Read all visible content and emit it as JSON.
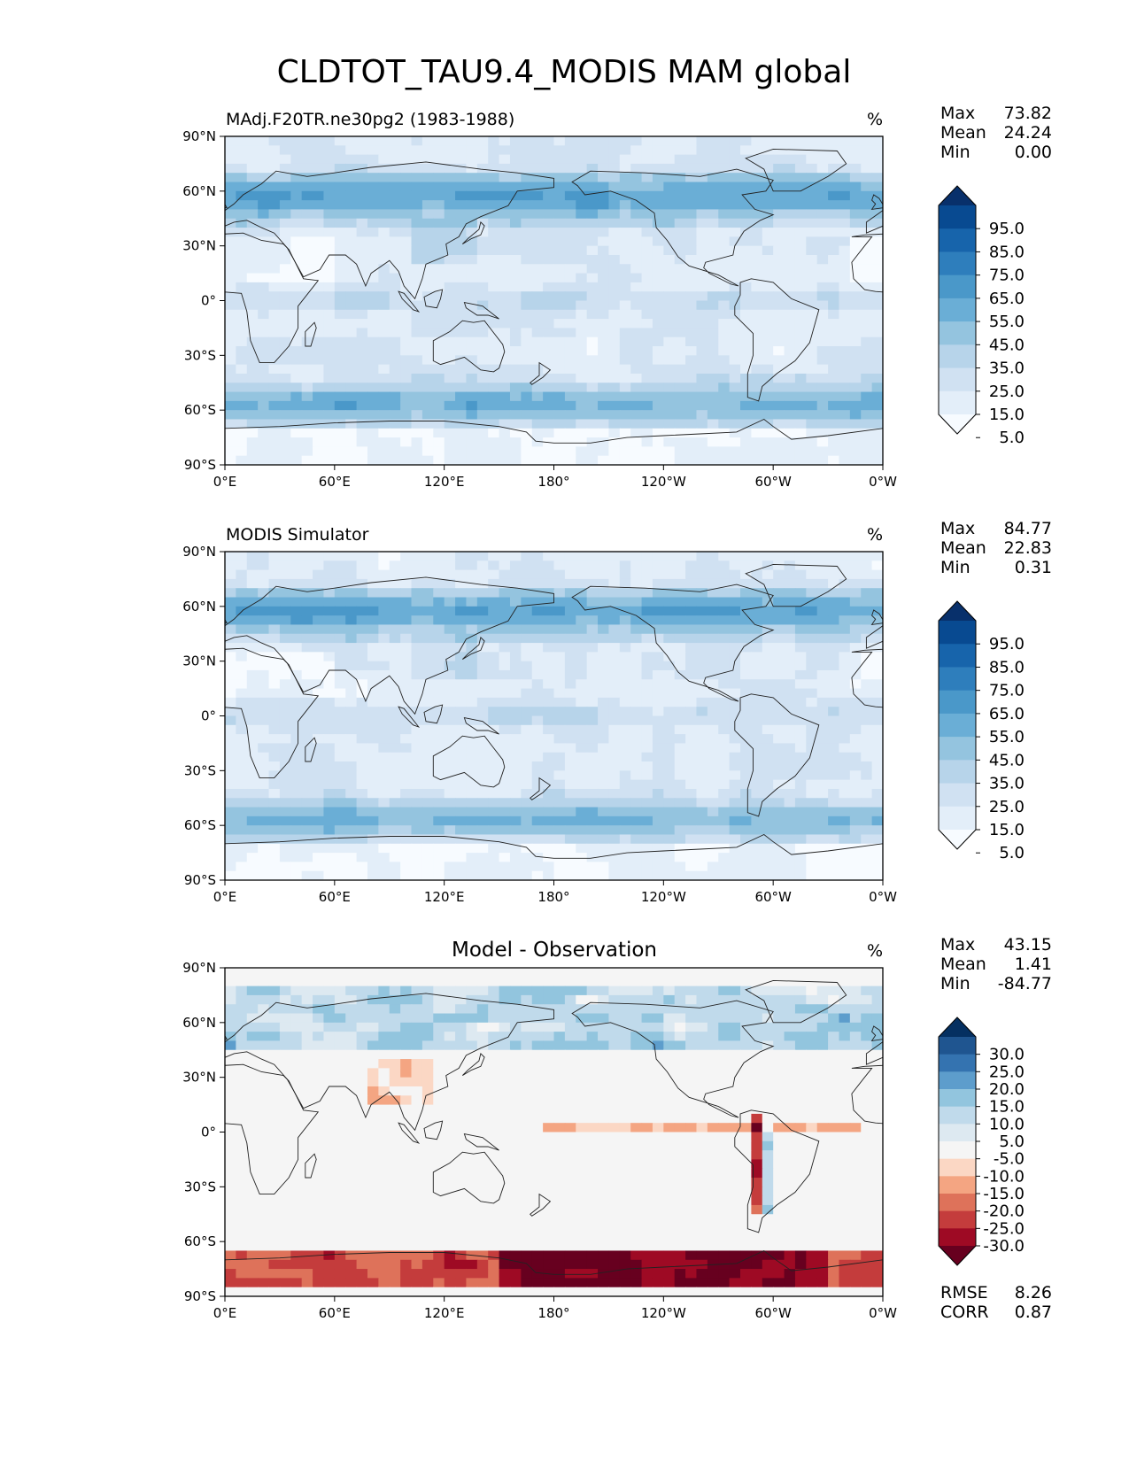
{
  "title": "CLDTOT_TAU9.4_MODIS MAM global",
  "colors": {
    "blues": [
      "#f7fbff",
      "#e3eef9",
      "#d0e1f2",
      "#b7d4ea",
      "#94c4df",
      "#6aaed6",
      "#4a98c9",
      "#2e7ebc",
      "#1764ab",
      "#084a91",
      "#08306b"
    ],
    "diff": [
      "#67001f",
      "#9e0a24",
      "#c43c3c",
      "#de725a",
      "#f4a582",
      "#fbd7c4",
      "#f5f5f5",
      "#dde9f1",
      "#c0daeb",
      "#92c5de",
      "#5d9dcc",
      "#3473b0",
      "#1f5590",
      "#053061"
    ],
    "land_outline": "#222222"
  },
  "chart_data": [
    {
      "type": "heatmap",
      "name": "test",
      "title": "MAdj.F20TR.ne30pg2 (1983-1988)",
      "units": "%",
      "stats": [
        {
          "label": "Max",
          "value": "73.82"
        },
        {
          "label": "Mean",
          "value": "24.24"
        },
        {
          "label": "Min",
          "value": "0.00"
        }
      ],
      "colorbar_levels": [
        "95.0",
        "85.0",
        "75.0",
        "65.0",
        "55.0",
        "45.0",
        "35.0",
        "25.0",
        "15.0",
        "5.0"
      ],
      "xticks": [
        "0°E",
        "60°E",
        "120°E",
        "180°",
        "120°W",
        "60°W",
        "0°W"
      ],
      "yticks": [
        "90°N",
        "60°N",
        "30°N",
        "0°",
        "30°S",
        "60°S",
        "90°S"
      ],
      "xlim": [
        0,
        360
      ],
      "ylim": [
        -90,
        90
      ]
    },
    {
      "type": "heatmap",
      "name": "reference",
      "title": "MODIS Simulator",
      "units": "%",
      "stats": [
        {
          "label": "Max",
          "value": "84.77"
        },
        {
          "label": "Mean",
          "value": "22.83"
        },
        {
          "label": "Min",
          "value": "0.31"
        }
      ],
      "colorbar_levels": [
        "95.0",
        "85.0",
        "75.0",
        "65.0",
        "55.0",
        "45.0",
        "35.0",
        "25.0",
        "15.0",
        "5.0"
      ],
      "xticks": [
        "0°E",
        "60°E",
        "120°E",
        "180°",
        "120°W",
        "60°W",
        "0°W"
      ],
      "yticks": [
        "90°N",
        "60°N",
        "30°N",
        "0°",
        "30°S",
        "60°S",
        "90°S"
      ],
      "xlim": [
        0,
        360
      ],
      "ylim": [
        -90,
        90
      ]
    },
    {
      "type": "heatmap",
      "name": "difference",
      "title": "Model - Observation",
      "units": "%",
      "stats": [
        {
          "label": "Max",
          "value": "43.15"
        },
        {
          "label": "Mean",
          "value": "1.41"
        },
        {
          "label": "Min",
          "value": "-84.77"
        }
      ],
      "colorbar_levels": [
        "30.0",
        "25.0",
        "20.0",
        "15.0",
        "10.0",
        "5.0",
        "-5.0",
        "-10.0",
        "-15.0",
        "-20.0",
        "-25.0",
        "-30.0"
      ],
      "metrics": [
        {
          "label": "RMSE",
          "value": "8.26"
        },
        {
          "label": "CORR",
          "value": "0.87"
        }
      ],
      "xticks": [
        "0°E",
        "60°E",
        "120°E",
        "180°",
        "120°W",
        "60°W",
        "0°W"
      ],
      "yticks": [
        "90°N",
        "60°N",
        "30°N",
        "0°",
        "30°S",
        "60°S",
        "90°S"
      ],
      "xlim": [
        0,
        360
      ],
      "ylim": [
        -90,
        90
      ]
    }
  ]
}
